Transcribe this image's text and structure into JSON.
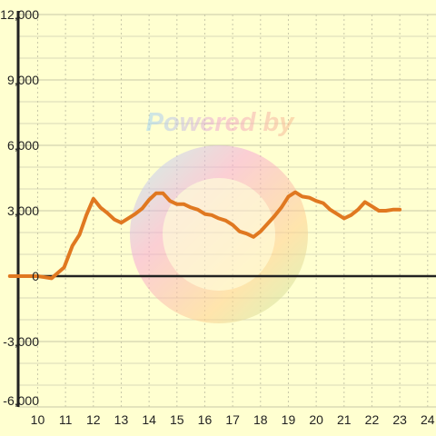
{
  "chart_data": {
    "type": "line",
    "title": "",
    "xlabel": "",
    "ylabel": "",
    "xlim": [
      9.3,
      24.3
    ],
    "ylim": [
      -6000,
      12000
    ],
    "x_ticks": [
      "10",
      "11",
      "12",
      "13",
      "14",
      "15",
      "16",
      "17",
      "18",
      "19",
      "20",
      "21",
      "22",
      "23",
      "24"
    ],
    "y_ticks": [
      "12,000",
      "9,000",
      "6,000",
      "3,000",
      "0",
      "-3,000",
      "-6,000"
    ],
    "grid": true,
    "series": [
      {
        "color": "#e07820",
        "x": [
          9.0,
          10.0,
          10.25,
          10.5,
          10.95,
          11.25,
          11.5,
          11.75,
          12.0,
          12.25,
          12.5,
          12.75,
          13.0,
          13.25,
          13.5,
          13.75,
          14.0,
          14.25,
          14.5,
          14.75,
          15.0,
          15.25,
          15.5,
          15.75,
          16.0,
          16.25,
          16.5,
          16.75,
          17.0,
          17.25,
          17.5,
          17.75,
          18.0,
          18.25,
          18.5,
          18.75,
          19.0,
          19.25,
          19.5,
          19.75,
          20.0,
          20.25,
          20.5,
          20.75,
          21.0,
          21.25,
          21.5,
          21.75,
          22.0,
          22.25,
          22.5,
          22.75,
          23.0
        ],
        "y": [
          0,
          0,
          -50,
          -100,
          400,
          1400,
          1900,
          2800,
          3550,
          3150,
          2900,
          2600,
          2450,
          2650,
          2850,
          3100,
          3500,
          3800,
          3800,
          3450,
          3300,
          3300,
          3150,
          3050,
          2850,
          2800,
          2650,
          2550,
          2350,
          2050,
          1950,
          1800,
          2050,
          2400,
          2750,
          3150,
          3650,
          3850,
          3650,
          3600,
          3450,
          3350,
          3050,
          2850,
          2650,
          2800,
          3050,
          3400,
          3200,
          3000,
          3000,
          3050,
          3050
        ]
      }
    ],
    "watermark_text": "Powered by"
  }
}
